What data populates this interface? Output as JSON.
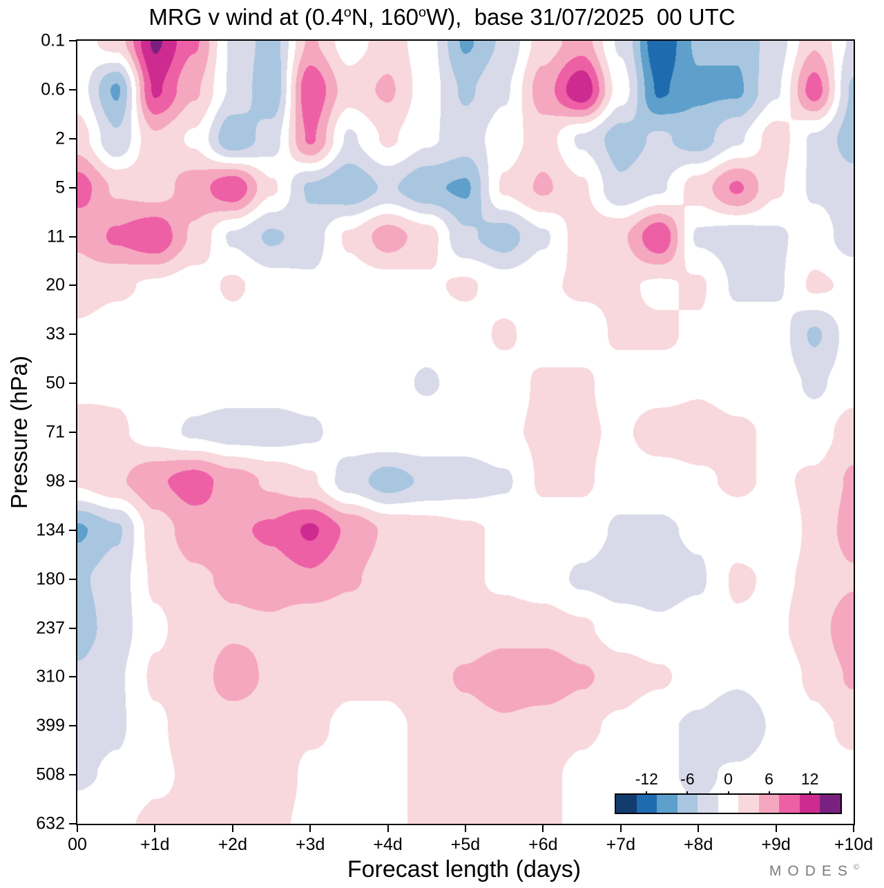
{
  "title": {
    "part1": "MRG v wind at (0.4",
    "sup1": "o",
    "part2": "N, 160",
    "sup2": "o",
    "part3": "W),  base 31/07/2025  00 UTC"
  },
  "axes": {
    "x_label": "Forecast length (days)",
    "y_label": "Pressure (hPa)"
  },
  "footer": {
    "brand": "MODES",
    "brand_mark": "©"
  },
  "chart_data": {
    "type": "heatmap",
    "title": "MRG v wind at (0.4°N, 160°W), base 31/07/2025 00 UTC",
    "xlabel": "Forecast length (days)",
    "ylabel": "Pressure (hPa)",
    "x_ticks": [
      "00",
      "+1d",
      "+2d",
      "+3d",
      "+4d",
      "+5d",
      "+6d",
      "+7d",
      "+8d",
      "+9d",
      "+10d"
    ],
    "x_values": [
      0,
      0.5,
      1,
      1.5,
      2,
      2.5,
      3,
      3.5,
      4,
      4.5,
      5,
      5.5,
      6,
      6.5,
      7,
      7.5,
      8,
      8.5,
      9,
      9.5,
      10
    ],
    "pressure_ticks": [
      "0.1",
      "0.6",
      "2",
      "5",
      "11",
      "20",
      "33",
      "50",
      "71",
      "98",
      "134",
      "180",
      "237",
      "310",
      "399",
      "508",
      "632"
    ],
    "grid": "rows correspond to pressure_ticks top to bottom, columns to x_values; values are estimated wind anomalies",
    "values": [
      [
        0,
        3,
        14,
        8,
        -2,
        -6,
        5,
        0,
        3,
        0,
        -8,
        -4,
        3,
        6,
        -2,
        -13,
        -7,
        -7,
        -3,
        4,
        -2
      ],
      [
        0,
        -8,
        11,
        5,
        -2,
        -7,
        10,
        3,
        5,
        0,
        -5,
        -2,
        6,
        13,
        0,
        -11,
        -8,
        -8,
        -2,
        9,
        -5
      ],
      [
        3,
        -4,
        4,
        1,
        -7,
        -3,
        8,
        -2,
        2,
        -1,
        -3,
        0,
        3,
        -2,
        -6,
        -4,
        -6,
        -2,
        3,
        -2,
        -6
      ],
      [
        9,
        4,
        3,
        6,
        10,
        2,
        -5,
        -7,
        -4,
        -7,
        -8,
        2,
        5,
        2,
        -4,
        -2,
        3,
        8,
        2,
        -2,
        -3
      ],
      [
        5,
        8,
        10,
        4,
        -2,
        -5,
        -3,
        2,
        6,
        3,
        -4,
        -6,
        -2,
        3,
        4,
        10,
        -2,
        -3,
        -2,
        0,
        -3
      ],
      [
        3,
        2,
        1,
        0,
        2,
        0,
        -1,
        0,
        0,
        1,
        2,
        0,
        1,
        2,
        2,
        1,
        2,
        -2,
        -2,
        2,
        1
      ],
      [
        1,
        0,
        0,
        0,
        0,
        0,
        0,
        0,
        0,
        0,
        0,
        2,
        0,
        0,
        2,
        2,
        1,
        0,
        0,
        -5,
        0
      ],
      [
        0,
        1,
        0,
        0,
        0,
        0,
        0,
        0,
        0,
        -2,
        0,
        0,
        2,
        2,
        0,
        0,
        1,
        0,
        0,
        -2,
        0
      ],
      [
        4,
        2,
        0,
        -2,
        -3,
        -3,
        -2,
        0,
        1,
        1,
        0,
        1,
        2,
        2,
        1,
        3,
        3,
        2,
        1,
        0,
        3
      ],
      [
        2,
        4,
        7,
        9,
        6,
        4,
        2,
        -3,
        -6,
        -4,
        -3,
        -2,
        2,
        2,
        0,
        0,
        1,
        2,
        1,
        2,
        5
      ],
      [
        -8,
        -5,
        3,
        6,
        7,
        8,
        11,
        7,
        4,
        3,
        2,
        1,
        0,
        0,
        -2,
        -2,
        -1,
        0,
        0,
        2,
        6
      ],
      [
        -5,
        -3,
        2,
        4,
        5,
        6,
        7,
        5,
        3,
        3,
        2,
        1,
        0,
        -2,
        -3,
        -3,
        -2,
        2,
        1,
        2,
        4
      ],
      [
        -6,
        -3,
        1,
        3,
        4,
        4,
        2,
        2,
        3,
        2,
        2,
        3,
        3,
        2,
        0,
        -1,
        0,
        1,
        1,
        3,
        7
      ],
      [
        -4,
        -2,
        2,
        3,
        6,
        4,
        3,
        2,
        2,
        3,
        5,
        7,
        7,
        5,
        3,
        2,
        0,
        -1,
        0,
        2,
        5
      ],
      [
        -3,
        -2,
        1,
        3,
        3,
        3,
        2,
        1,
        1,
        2,
        3,
        4,
        3,
        2,
        1,
        -1,
        -2,
        -4,
        -1,
        1,
        2
      ],
      [
        -2,
        -1,
        1,
        2,
        3,
        3,
        1,
        1,
        1,
        2,
        2,
        2,
        2,
        1,
        0,
        -1,
        -2,
        -1,
        0,
        1,
        1
      ],
      [
        0,
        1,
        2,
        2,
        3,
        2,
        1,
        0,
        1,
        2,
        2,
        2,
        2,
        1,
        0,
        0,
        -1,
        0,
        0,
        0,
        1
      ]
    ],
    "colormap": {
      "boundaries": [
        -13.5,
        -10.5,
        -7.5,
        -4.5,
        -1.5,
        1.5,
        4.5,
        7.5,
        10.5,
        13.5
      ],
      "colors": [
        "#123c6d",
        "#1e6bb0",
        "#5e9fcb",
        "#a9c6e1",
        "#d9dae9",
        "#ffffff",
        "#f8d8dc",
        "#f5a7c0",
        "#ee60a5",
        "#cd2b8f",
        "#7a2080"
      ]
    },
    "colorbar": {
      "tick_labels": [
        "-12",
        "-6",
        "0",
        "6",
        "12"
      ],
      "tick_values": [
        -12,
        -6,
        0,
        6,
        12
      ],
      "range": [
        -16.5,
        16.5
      ],
      "position": "inside plot, bottom right"
    },
    "grid_lines": "off",
    "y_axis_type": "log-pressure, decreasing height downward"
  }
}
